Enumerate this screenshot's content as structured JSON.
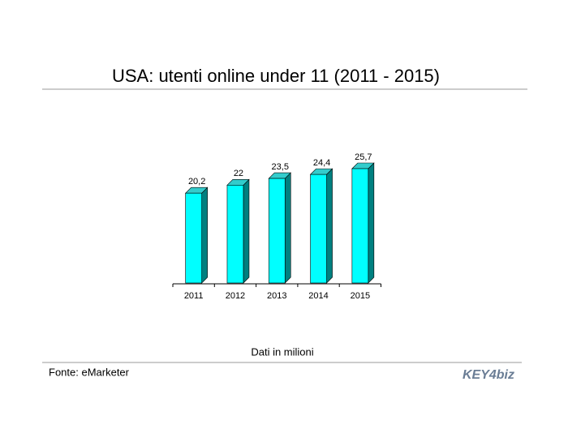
{
  "chart_data": {
    "type": "bar3d",
    "title": "USA: utenti online under 11 (2011 - 2015)",
    "categories": [
      "2011",
      "2012",
      "2013",
      "2014",
      "2015"
    ],
    "values": [
      20.2,
      22,
      23.5,
      24.4,
      25.7
    ],
    "value_labels": [
      "20,2",
      "22",
      "23,5",
      "24,4",
      "25,7"
    ],
    "color": "#00ffff",
    "note": "Dati in milioni",
    "source": "Fonte: eMarketer",
    "logo": "KEY4biz"
  }
}
